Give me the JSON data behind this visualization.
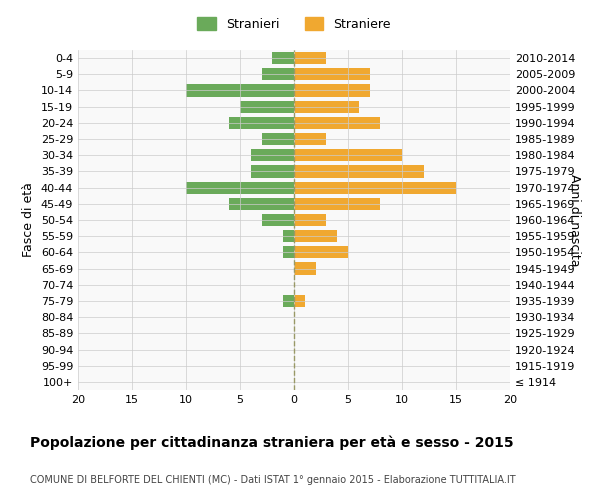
{
  "age_groups": [
    "100+",
    "95-99",
    "90-94",
    "85-89",
    "80-84",
    "75-79",
    "70-74",
    "65-69",
    "60-64",
    "55-59",
    "50-54",
    "45-49",
    "40-44",
    "35-39",
    "30-34",
    "25-29",
    "20-24",
    "15-19",
    "10-14",
    "5-9",
    "0-4"
  ],
  "birth_years": [
    "≤ 1914",
    "1915-1919",
    "1920-1924",
    "1925-1929",
    "1930-1934",
    "1935-1939",
    "1940-1944",
    "1945-1949",
    "1950-1954",
    "1955-1959",
    "1960-1964",
    "1965-1969",
    "1970-1974",
    "1975-1979",
    "1980-1984",
    "1985-1989",
    "1990-1994",
    "1995-1999",
    "2000-2004",
    "2005-2009",
    "2010-2014"
  ],
  "males": [
    0,
    0,
    0,
    0,
    0,
    1,
    0,
    0,
    1,
    1,
    3,
    6,
    10,
    4,
    4,
    3,
    6,
    5,
    10,
    3,
    2
  ],
  "females": [
    0,
    0,
    0,
    0,
    0,
    1,
    0,
    2,
    5,
    4,
    3,
    8,
    15,
    12,
    10,
    3,
    8,
    6,
    7,
    7,
    3
  ],
  "male_color": "#6aaa5a",
  "female_color": "#f0a830",
  "grid_color": "#cccccc",
  "center_line_color": "#999966",
  "xlim": 20,
  "title": "Popolazione per cittadinanza straniera per età e sesso - 2015",
  "subtitle": "COMUNE DI BELFORTE DEL CHIENTI (MC) - Dati ISTAT 1° gennaio 2015 - Elaborazione TUTTITALIA.IT",
  "ylabel_left": "Fasce di età",
  "ylabel_right": "Anni di nascita",
  "legend_male": "Stranieri",
  "legend_female": "Straniere",
  "bg_color": "#ffffff",
  "plot_bg_color": "#f9f9f9"
}
